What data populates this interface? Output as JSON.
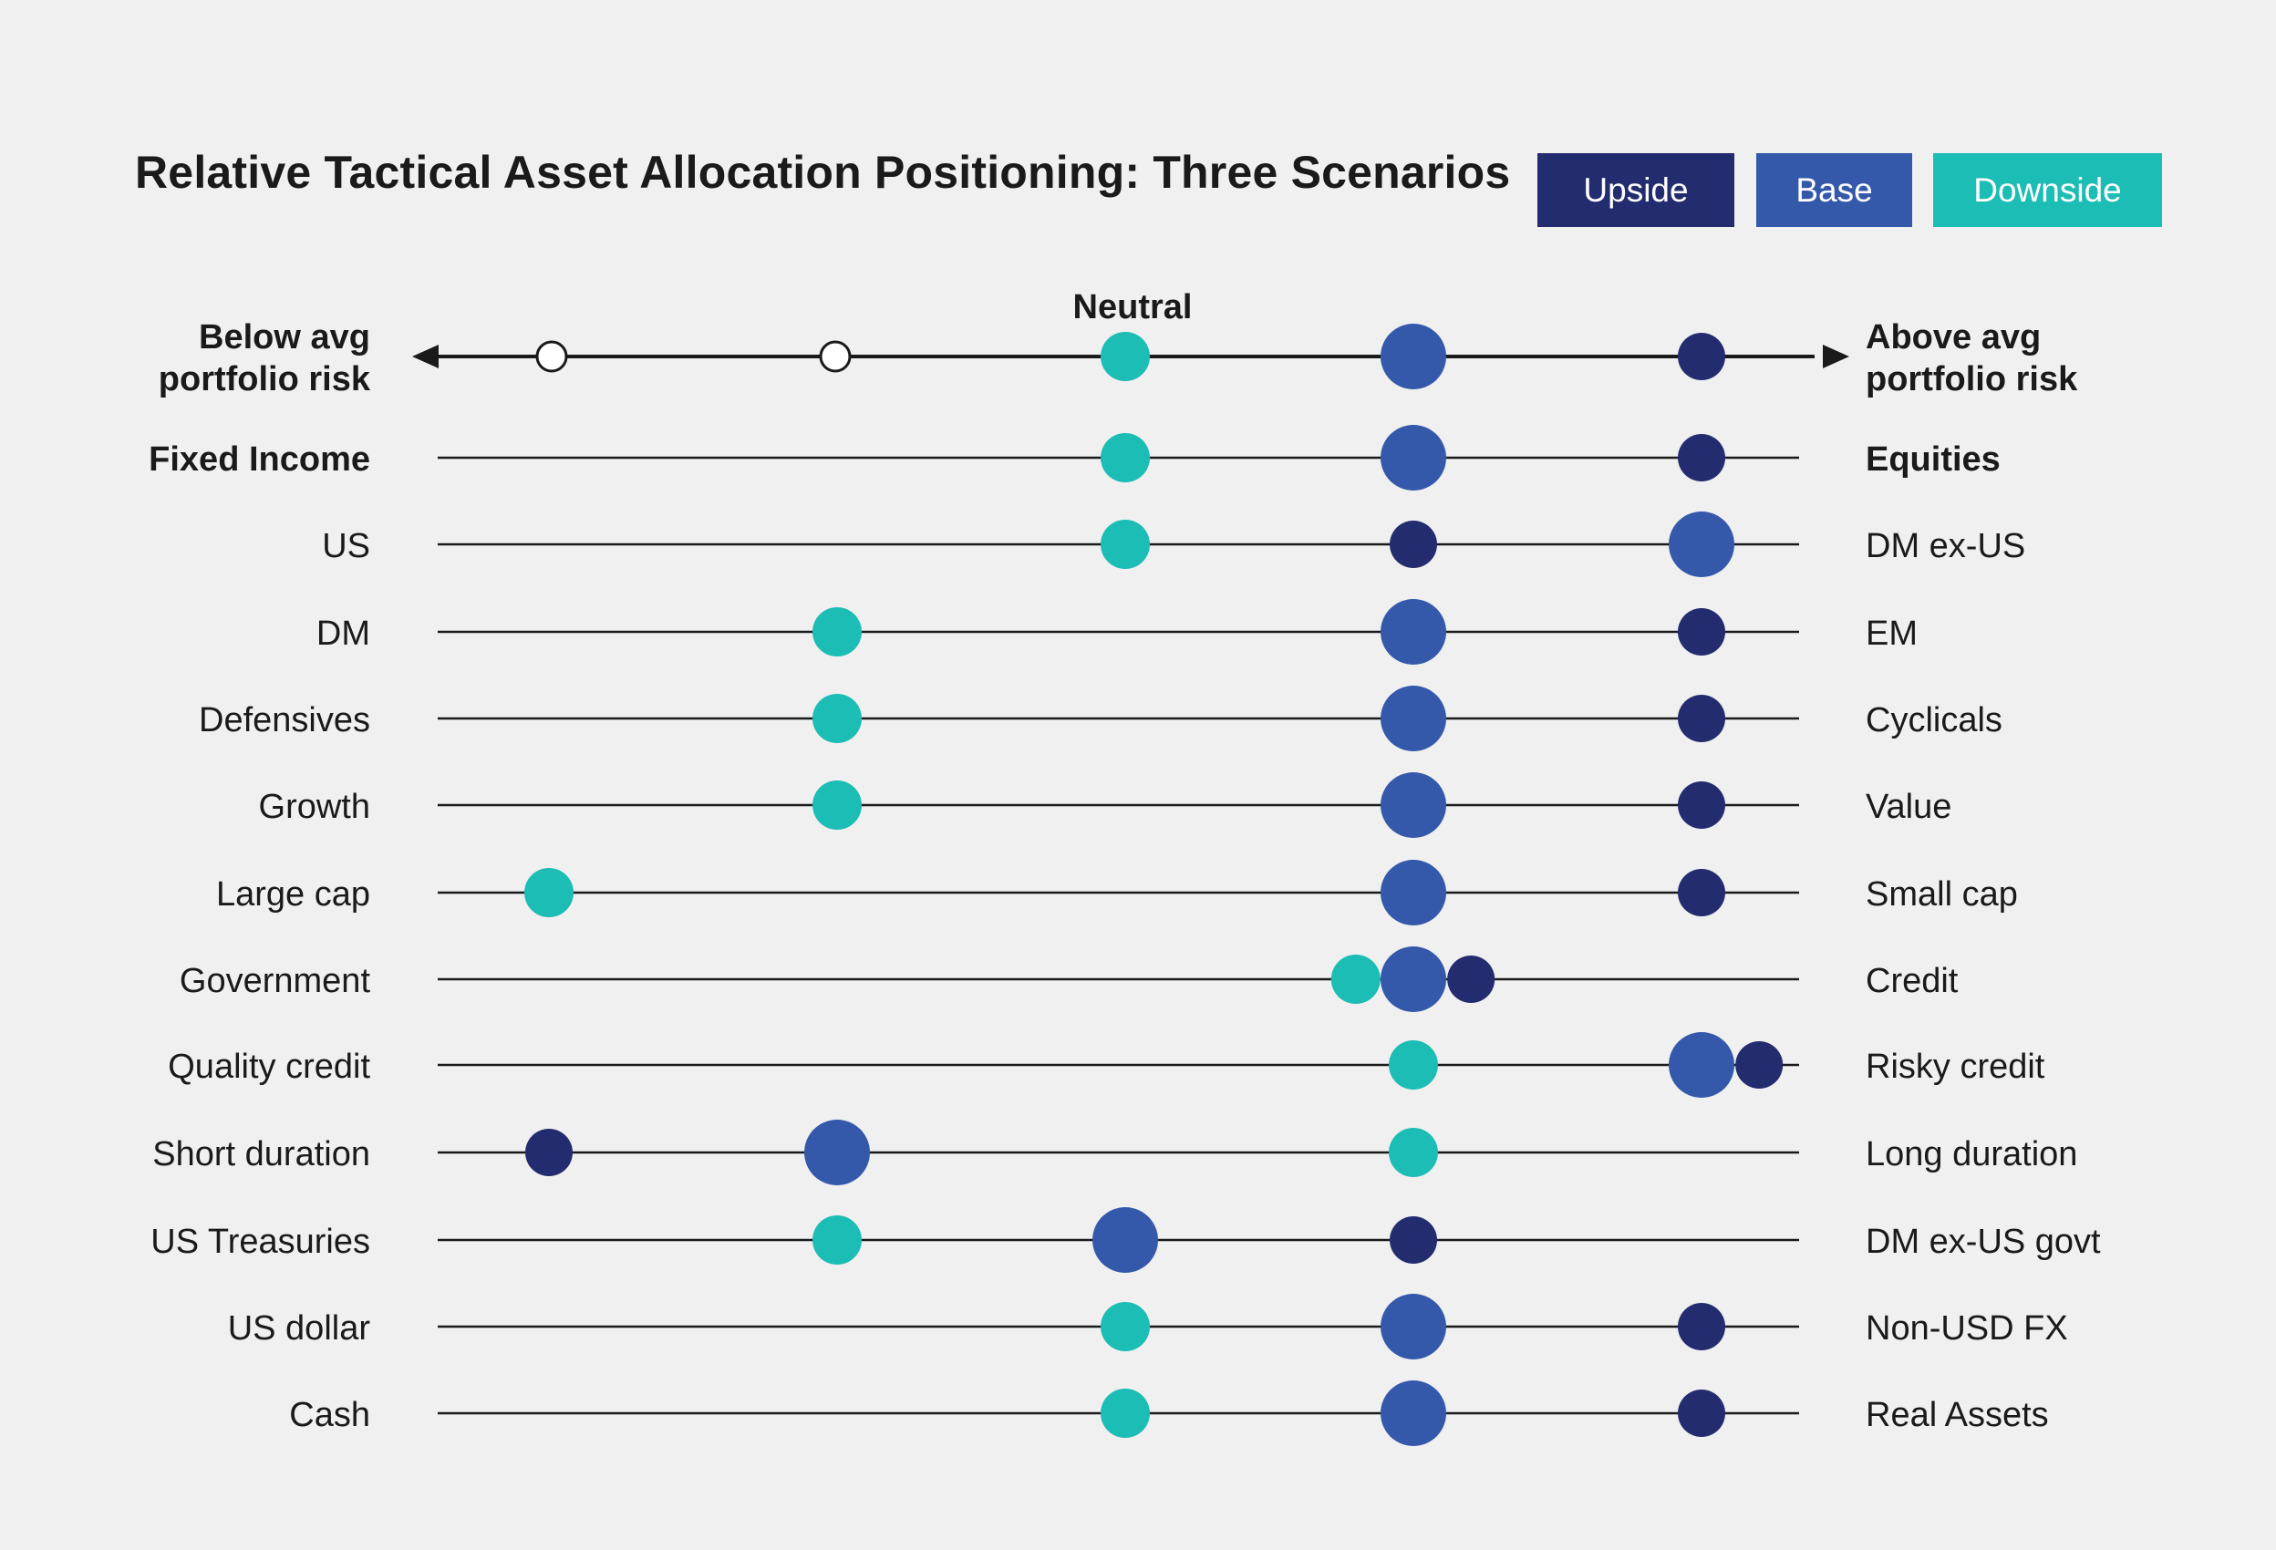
{
  "chart_data": {
    "type": "scatter",
    "title": "Relative Tactical Asset Allocation Positioning: Three Scenarios",
    "legend": [
      {
        "name": "Upside",
        "color": "#232c6f"
      },
      {
        "name": "Base",
        "color": "#3459ab"
      },
      {
        "name": "Downside",
        "color": "#1cbdb5"
      }
    ],
    "scale": {
      "center_label": "Neutral",
      "left_label": "Below avg portfolio risk",
      "right_label": "Above avg portfolio risk",
      "xlim": [
        -2,
        2
      ],
      "ticks": [
        -2,
        -1,
        0,
        1,
        2
      ],
      "key_positions": {
        "Downside": 0,
        "Base": 1,
        "Upside": 2
      }
    },
    "rows": [
      {
        "left": "Fixed Income",
        "right": "Equities",
        "bold": true,
        "Downside": 0,
        "Base": 1,
        "Upside": 2
      },
      {
        "left": "US",
        "right": "DM ex-US",
        "Downside": 0,
        "Base": 2,
        "Upside": 1
      },
      {
        "left": "DM",
        "right": "EM",
        "Downside": -1,
        "Base": 1,
        "Upside": 2
      },
      {
        "left": "Defensives",
        "right": "Cyclicals",
        "Downside": -1,
        "Base": 1,
        "Upside": 2
      },
      {
        "left": "Growth",
        "right": "Value",
        "Downside": -1,
        "Base": 1,
        "Upside": 2
      },
      {
        "left": "Large cap",
        "right": "Small cap",
        "Downside": -2,
        "Base": 1,
        "Upside": 2
      },
      {
        "left": "Government",
        "right": "Credit",
        "Downside": 0.8,
        "Base": 1,
        "Upside": 1.2
      },
      {
        "left": "Quality credit",
        "right": "Risky credit",
        "Downside": 1,
        "Base": 2,
        "Upside": 2.2
      },
      {
        "left": "Short duration",
        "right": "Long duration",
        "Downside": 1,
        "Base": -1,
        "Upside": -2
      },
      {
        "left": "US Treasuries",
        "right": "DM ex-US govt",
        "Downside": -1,
        "Base": 0,
        "Upside": 1
      },
      {
        "left": "US dollar",
        "right": "Non-USD FX",
        "Downside": 0,
        "Base": 1,
        "Upside": 2
      },
      {
        "left": "Cash",
        "right": "Real Assets",
        "Downside": 0,
        "Base": 1,
        "Upside": 2
      }
    ]
  }
}
